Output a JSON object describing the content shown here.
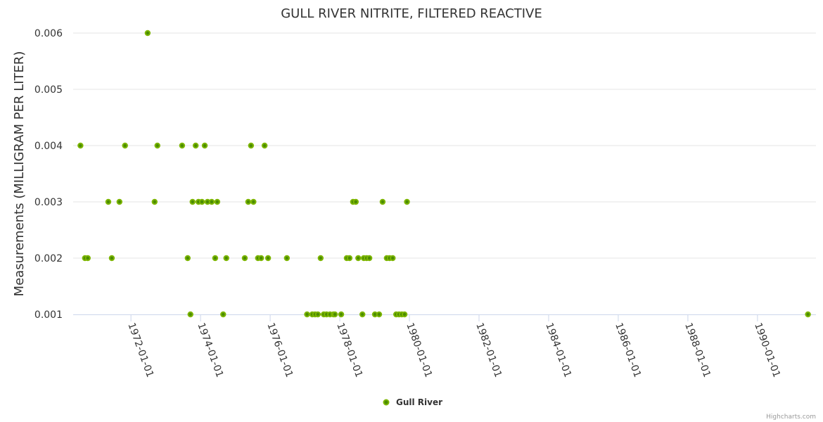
{
  "chart_data": {
    "type": "scatter",
    "title": "GULL RIVER NITRITE, FILTERED REACTIVE",
    "xlabel": "",
    "ylabel": "Measurements (MILLIGRAM PER LITER)",
    "x_unit": "decimal year",
    "xlim": [
      1970.34,
      1991.68
    ],
    "ylim": [
      0.001,
      0.006
    ],
    "yticks": [
      "0.001",
      "0.002",
      "0.003",
      "0.004",
      "0.005",
      "0.006"
    ],
    "ytick_values": [
      0.001,
      0.002,
      0.003,
      0.004,
      0.005,
      0.006
    ],
    "xticks": [
      "1972-01-01",
      "1974-01-01",
      "1976-01-01",
      "1978-01-01",
      "1980-01-01",
      "1982-01-01",
      "1984-01-01",
      "1986-01-01",
      "1988-01-01",
      "1990-01-01"
    ],
    "xtick_values": [
      1972,
      1974,
      1976,
      1978,
      1980,
      1982,
      1984,
      1986,
      1988,
      1990
    ],
    "grid": true,
    "legend_position": "bottom-center",
    "series": [
      {
        "name": "Gull River",
        "color": "#7cb500",
        "points": [
          [
            1972.48,
            0.006
          ],
          [
            1970.55,
            0.004
          ],
          [
            1971.83,
            0.004
          ],
          [
            1972.76,
            0.004
          ],
          [
            1973.47,
            0.004
          ],
          [
            1973.86,
            0.004
          ],
          [
            1974.12,
            0.004
          ],
          [
            1975.45,
            0.004
          ],
          [
            1975.84,
            0.004
          ],
          [
            1971.35,
            0.003
          ],
          [
            1971.67,
            0.003
          ],
          [
            1972.68,
            0.003
          ],
          [
            1973.77,
            0.003
          ],
          [
            1973.94,
            0.003
          ],
          [
            1974.04,
            0.003
          ],
          [
            1974.2,
            0.003
          ],
          [
            1974.32,
            0.003
          ],
          [
            1974.48,
            0.003
          ],
          [
            1975.37,
            0.003
          ],
          [
            1975.52,
            0.003
          ],
          [
            1978.38,
            0.003
          ],
          [
            1978.46,
            0.003
          ],
          [
            1979.23,
            0.003
          ],
          [
            1979.93,
            0.003
          ],
          [
            1970.68,
            0.002
          ],
          [
            1970.76,
            0.002
          ],
          [
            1971.45,
            0.002
          ],
          [
            1973.63,
            0.002
          ],
          [
            1974.42,
            0.002
          ],
          [
            1974.74,
            0.002
          ],
          [
            1975.27,
            0.002
          ],
          [
            1975.65,
            0.002
          ],
          [
            1975.74,
            0.002
          ],
          [
            1975.94,
            0.002
          ],
          [
            1976.48,
            0.002
          ],
          [
            1977.45,
            0.002
          ],
          [
            1978.2,
            0.002
          ],
          [
            1978.28,
            0.002
          ],
          [
            1978.53,
            0.002
          ],
          [
            1978.69,
            0.002
          ],
          [
            1978.77,
            0.002
          ],
          [
            1978.85,
            0.002
          ],
          [
            1979.35,
            0.002
          ],
          [
            1979.43,
            0.002
          ],
          [
            1979.52,
            0.002
          ],
          [
            1973.71,
            0.001
          ],
          [
            1974.65,
            0.001
          ],
          [
            1977.06,
            0.001
          ],
          [
            1977.21,
            0.001
          ],
          [
            1977.29,
            0.001
          ],
          [
            1977.37,
            0.001
          ],
          [
            1977.54,
            0.001
          ],
          [
            1977.62,
            0.001
          ],
          [
            1977.72,
            0.001
          ],
          [
            1977.82,
            0.001
          ],
          [
            1977.86,
            0.001
          ],
          [
            1978.04,
            0.001
          ],
          [
            1978.65,
            0.001
          ],
          [
            1979.01,
            0.001
          ],
          [
            1979.13,
            0.001
          ],
          [
            1979.62,
            0.001
          ],
          [
            1979.7,
            0.001
          ],
          [
            1979.78,
            0.001
          ],
          [
            1979.86,
            0.001
          ],
          [
            1991.45,
            0.001
          ]
        ]
      }
    ],
    "credits": "Highcharts.com"
  }
}
